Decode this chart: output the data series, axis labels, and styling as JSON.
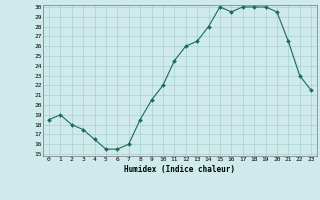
{
  "x": [
    0,
    1,
    2,
    3,
    4,
    5,
    6,
    7,
    8,
    9,
    10,
    11,
    12,
    13,
    14,
    15,
    16,
    17,
    18,
    19,
    20,
    21,
    22,
    23
  ],
  "y": [
    18.5,
    19.0,
    18.0,
    17.5,
    16.5,
    15.5,
    15.5,
    16.0,
    18.5,
    20.5,
    22.0,
    24.5,
    26.0,
    26.5,
    28.0,
    30.0,
    29.5,
    30.0,
    30.0,
    30.0,
    29.5,
    26.5,
    23.0,
    21.5
  ],
  "bg_color": "#ceeaea",
  "line_color": "#1a6b5a",
  "marker_color": "#1a6b5a",
  "grid_color": "#aacfcf",
  "xlabel": "Humidex (Indice chaleur)",
  "ylim": [
    15,
    30
  ],
  "xlim": [
    -0.5,
    23.5
  ],
  "yticks": [
    15,
    16,
    17,
    18,
    19,
    20,
    21,
    22,
    23,
    24,
    25,
    26,
    27,
    28,
    29,
    30
  ],
  "xticks": [
    0,
    1,
    2,
    3,
    4,
    5,
    6,
    7,
    8,
    9,
    10,
    11,
    12,
    13,
    14,
    15,
    16,
    17,
    18,
    19,
    20,
    21,
    22,
    23
  ],
  "xtick_labels": [
    "0",
    "1",
    "2",
    "3",
    "4",
    "5",
    "6",
    "7",
    "8",
    "9",
    "10",
    "11",
    "12",
    "13",
    "14",
    "15",
    "16",
    "17",
    "18",
    "19",
    "20",
    "21",
    "22",
    "23"
  ]
}
